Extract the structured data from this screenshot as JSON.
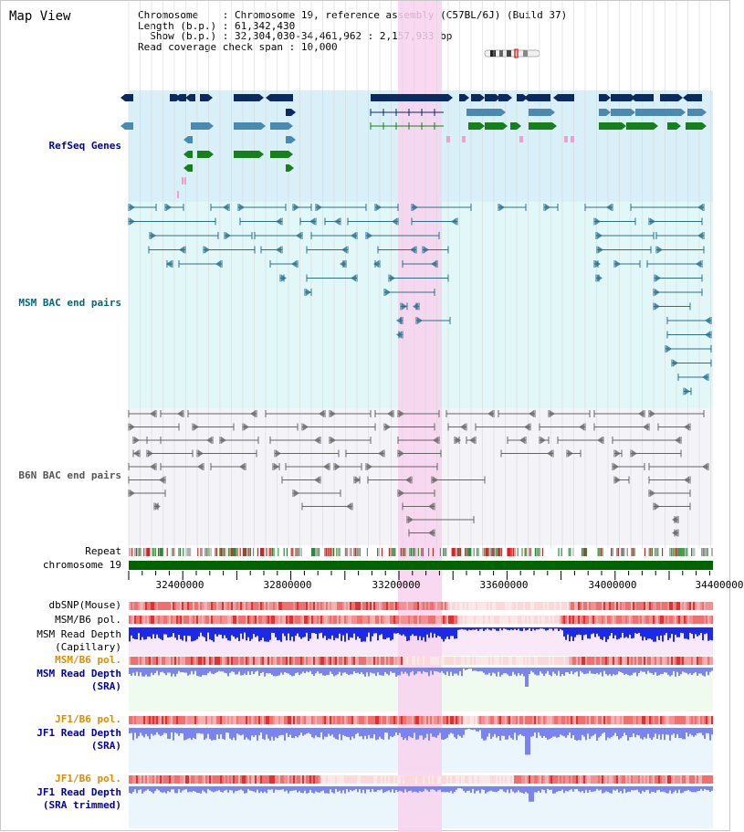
{
  "window": {
    "title": "Map View"
  },
  "header": {
    "chromosome_label": "Chromosome",
    "chromosome_value": "Chromosome 19, reference assembly (C57BL/6J) (Build 37)",
    "length_label": "Length (b.p.)",
    "length_value": "61,342,430",
    "show_label": "Show (b.p.)",
    "show_value": "32,304,030-34,461,962 : 2,157,933 bp",
    "coverage_label": "Read coverage check span",
    "coverage_value": "10,000"
  },
  "tracks": {
    "refseq": "RefSeq Genes",
    "msm_bac": "MSM BAC end pairs",
    "b6n_bac": "B6N BAC end pairs",
    "repeat": "Repeat",
    "chromosome": "chromosome 19",
    "dbsnp": "dbSNP(Mouse)",
    "msm_b6_pol": "MSM/B6 pol.",
    "msm_depth_cap_1": "MSM Read Depth",
    "msm_depth_cap_2": "(Capillary)",
    "msm_b6_pol_sra": "MSM/B6 pol.",
    "msm_depth_sra_1": "MSM Read Depth",
    "msm_depth_sra_2": "(SRA)",
    "jf1_b6_pol": "JF1/B6 pol.",
    "jf1_depth_1": "JF1 Read Depth",
    "jf1_depth_2": "(SRA)",
    "jf1_b6_pol_2": "JF1/B6 pol.",
    "jf1_trim_1": "JF1 Read Depth",
    "jf1_trim_2": "(SRA trimmed)"
  },
  "axis": {
    "ticks": [
      "32400000",
      "32800000",
      "33200000",
      "33600000",
      "34000000",
      "34400000"
    ]
  },
  "colors": {
    "refseq_bg": "#daf0f8",
    "msm_bg": "#e2f8f8",
    "b6n_bg": "#f4f4f8",
    "highlight": "#f8d2ee",
    "chromosome": "#006400",
    "gene_navy": "#0a2a62",
    "gene_teal": "#4a8ab0",
    "gene_green": "#16801a",
    "msm_pair": "#2a6f8c",
    "b6n_pair": "#666666",
    "depth_cap": "#1a2ae8",
    "depth_sra": "#7a84f0",
    "label_blue": "#0000aa",
    "label_teal": "#006a7a",
    "label_orange": "#e08a00"
  }
}
